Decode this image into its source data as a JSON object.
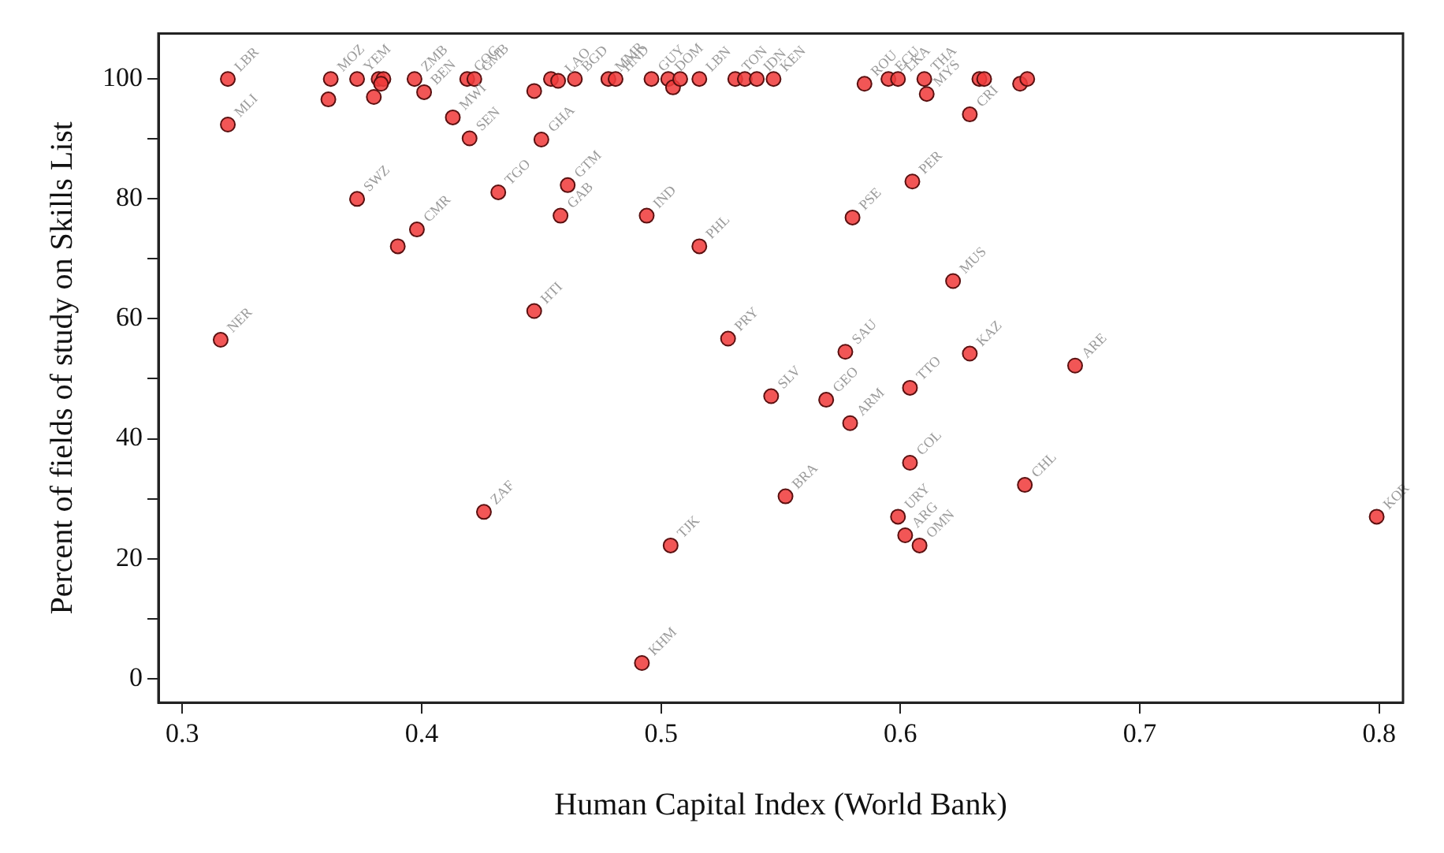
{
  "chart_data": {
    "type": "scatter",
    "xlabel": "Human Capital Index (World Bank)",
    "ylabel": "Percent of fields of study on Skills List",
    "xlim": [
      0.29,
      0.81
    ],
    "xticks": [
      0.3,
      0.4,
      0.5,
      0.6,
      0.7,
      0.8
    ],
    "ylim": [
      -4,
      107.6
    ],
    "yticks": [
      0,
      {
        "value": 10,
        "label": null
      },
      20,
      {
        "value": 30,
        "label": null
      },
      40,
      {
        "value": 50,
        "label": null
      },
      60,
      {
        "value": 70,
        "label": null
      },
      80,
      {
        "value": 90,
        "label": null
      },
      100
    ],
    "grid": false,
    "legend": false,
    "marker": "circle",
    "series": [
      {
        "color": "#f03c3c",
        "x": [
          0.319,
          0.319,
          0.316,
          0.362,
          0.361,
          0.373,
          0.38,
          0.382,
          0.384,
          0.383,
          0.397,
          0.401,
          0.413,
          0.42,
          0.419,
          0.422,
          0.373,
          0.398,
          0.39,
          0.432,
          0.45,
          0.447,
          0.454,
          0.457,
          0.464,
          0.478,
          0.481,
          0.496,
          0.503,
          0.505,
          0.508,
          0.516,
          0.531,
          0.535,
          0.54,
          0.547,
          0.585,
          0.595,
          0.599,
          0.61,
          0.611,
          0.629,
          0.633,
          0.635,
          0.65,
          0.653,
          0.461,
          0.458,
          0.494,
          0.516,
          0.58,
          0.605,
          0.447,
          0.528,
          0.546,
          0.426,
          0.504,
          0.492,
          0.622,
          0.577,
          0.629,
          0.673,
          0.569,
          0.604,
          0.579,
          0.604,
          0.652,
          0.552,
          0.599,
          0.602,
          0.608,
          0.799
        ],
        "values": [
          100,
          92.4,
          56.5,
          100,
          96.6,
          100,
          97.0,
          100,
          100,
          99.2,
          100,
          97.8,
          93.6,
          90.1,
          100,
          100,
          80.0,
          74.9,
          72.1,
          81.1,
          89.9,
          98.0,
          100,
          99.7,
          100,
          100,
          100,
          100,
          100,
          98.6,
          100,
          100,
          100,
          100,
          100,
          100,
          99.2,
          100,
          100,
          100,
          97.5,
          94.1,
          100,
          100,
          99.2,
          100,
          82.3,
          77.2,
          77.2,
          72.1,
          76.9,
          82.9,
          61.3,
          56.7,
          47.1,
          27.8,
          22.2,
          2.6,
          66.3,
          54.5,
          54.2,
          52.2,
          46.5,
          48.5,
          42.6,
          36.0,
          32.3,
          30.4,
          27.0,
          23.9,
          22.2,
          27.0
        ]
      }
    ],
    "annotations": [
      {
        "text": "LBR",
        "x": 0.319,
        "y": 100
      },
      {
        "text": "MLI",
        "x": 0.319,
        "y": 92.4
      },
      {
        "text": "NER",
        "x": 0.316,
        "y": 56.5
      },
      {
        "text": "MOZ",
        "x": 0.362,
        "y": 100
      },
      {
        "text": "YEM",
        "x": 0.373,
        "y": 100
      },
      {
        "text": "ZMB",
        "x": 0.397,
        "y": 100
      },
      {
        "text": "BEN",
        "x": 0.401,
        "y": 97.8
      },
      {
        "text": "MWI",
        "x": 0.413,
        "y": 93.6
      },
      {
        "text": "SEN",
        "x": 0.42,
        "y": 90.1
      },
      {
        "text": "COG",
        "x": 0.419,
        "y": 100
      },
      {
        "text": "GMB",
        "x": 0.422,
        "y": 100
      },
      {
        "text": "SWZ",
        "x": 0.373,
        "y": 80.0
      },
      {
        "text": "CMR",
        "x": 0.398,
        "y": 74.9
      },
      {
        "text": "TGO",
        "x": 0.432,
        "y": 81.1
      },
      {
        "text": "GHA",
        "x": 0.45,
        "y": 89.9
      },
      {
        "text": "LAO",
        "x": 0.457,
        "y": 99.7
      },
      {
        "text": "BGD",
        "x": 0.464,
        "y": 100
      },
      {
        "text": "MMR",
        "x": 0.478,
        "y": 100
      },
      {
        "text": "HND",
        "x": 0.481,
        "y": 100
      },
      {
        "text": "GUY",
        "x": 0.496,
        "y": 100
      },
      {
        "text": "DOM",
        "x": 0.503,
        "y": 100
      },
      {
        "text": "LBN",
        "x": 0.516,
        "y": 100
      },
      {
        "text": "TON",
        "x": 0.531,
        "y": 100
      },
      {
        "text": "IDN",
        "x": 0.54,
        "y": 100
      },
      {
        "text": "KEN",
        "x": 0.547,
        "y": 100
      },
      {
        "text": "ROU",
        "x": 0.585,
        "y": 99.2
      },
      {
        "text": "ECU",
        "x": 0.595,
        "y": 100
      },
      {
        "text": "LKA",
        "x": 0.599,
        "y": 100
      },
      {
        "text": "THA",
        "x": 0.61,
        "y": 100
      },
      {
        "text": "MYS",
        "x": 0.611,
        "y": 97.5
      },
      {
        "text": "CRI",
        "x": 0.629,
        "y": 94.1
      },
      {
        "text": "GTM",
        "x": 0.461,
        "y": 82.3
      },
      {
        "text": "GAB",
        "x": 0.458,
        "y": 77.2
      },
      {
        "text": "IND",
        "x": 0.494,
        "y": 77.2
      },
      {
        "text": "PHL",
        "x": 0.516,
        "y": 72.1
      },
      {
        "text": "PSE",
        "x": 0.58,
        "y": 76.9
      },
      {
        "text": "PER",
        "x": 0.605,
        "y": 82.9
      },
      {
        "text": "HTI",
        "x": 0.447,
        "y": 61.3
      },
      {
        "text": "PRY",
        "x": 0.528,
        "y": 56.7
      },
      {
        "text": "SLV",
        "x": 0.546,
        "y": 47.1
      },
      {
        "text": "ZAF",
        "x": 0.426,
        "y": 27.8
      },
      {
        "text": "TJK",
        "x": 0.504,
        "y": 22.2
      },
      {
        "text": "KHM",
        "x": 0.492,
        "y": 2.6
      },
      {
        "text": "MUS",
        "x": 0.622,
        "y": 66.3
      },
      {
        "text": "SAU",
        "x": 0.577,
        "y": 54.5
      },
      {
        "text": "KAZ",
        "x": 0.629,
        "y": 54.2
      },
      {
        "text": "ARE",
        "x": 0.673,
        "y": 52.2
      },
      {
        "text": "GEO",
        "x": 0.569,
        "y": 46.5
      },
      {
        "text": "TTO",
        "x": 0.604,
        "y": 48.5
      },
      {
        "text": "ARM",
        "x": 0.579,
        "y": 42.6
      },
      {
        "text": "COL",
        "x": 0.604,
        "y": 36.0
      },
      {
        "text": "CHL",
        "x": 0.652,
        "y": 32.3
      },
      {
        "text": "BRA",
        "x": 0.552,
        "y": 30.4
      },
      {
        "text": "URY",
        "x": 0.599,
        "y": 27.0
      },
      {
        "text": "ARG",
        "x": 0.602,
        "y": 23.9
      },
      {
        "text": "OMN",
        "x": 0.608,
        "y": 22.2
      },
      {
        "text": "KOR",
        "x": 0.799,
        "y": 27.0
      }
    ]
  }
}
